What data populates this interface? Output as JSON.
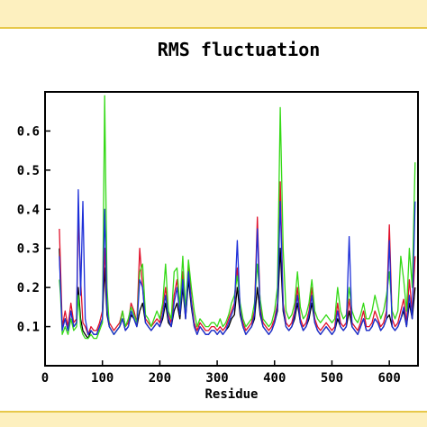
{
  "chart_data": {
    "type": "line",
    "title": "RMS fluctuation",
    "xlabel": "Residue",
    "ylabel": "",
    "xlim": [
      0,
      650
    ],
    "ylim": [
      0,
      0.7
    ],
    "x_ticks": [
      0,
      100,
      200,
      300,
      400,
      500,
      600
    ],
    "x_tick_labels": [
      "0",
      "100",
      "200",
      "300",
      "400",
      "500",
      "600"
    ],
    "y_ticks": [
      0.1,
      0.2,
      0.3,
      0.4,
      0.5,
      0.6
    ],
    "y_tick_labels": [
      "0.1",
      "0.2",
      "0.3",
      "0.4",
      "0.5",
      "0.6"
    ],
    "grid": false,
    "legend": "none",
    "series": [
      {
        "color": "#000000",
        "x": [
          25,
          27,
          30,
          35,
          40,
          45,
          50,
          55,
          58,
          62,
          66,
          70,
          75,
          80,
          85,
          90,
          95,
          100,
          104,
          108,
          112,
          116,
          120,
          125,
          130,
          135,
          140,
          145,
          150,
          155,
          160,
          165,
          170,
          175,
          180,
          185,
          190,
          195,
          200,
          205,
          210,
          215,
          220,
          225,
          230,
          235,
          240,
          245,
          250,
          255,
          260,
          265,
          270,
          275,
          280,
          285,
          290,
          295,
          300,
          305,
          310,
          315,
          320,
          325,
          330,
          335,
          340,
          345,
          350,
          355,
          360,
          365,
          370,
          375,
          380,
          385,
          390,
          395,
          400,
          405,
          410,
          415,
          420,
          425,
          430,
          435,
          440,
          445,
          450,
          455,
          460,
          465,
          470,
          475,
          480,
          485,
          490,
          495,
          500,
          505,
          510,
          515,
          520,
          525,
          530,
          535,
          540,
          545,
          550,
          555,
          560,
          565,
          570,
          575,
          580,
          585,
          590,
          595,
          600,
          605,
          610,
          615,
          620,
          625,
          630,
          635,
          640,
          645
        ],
        "y": [
          0.3,
          0.2,
          0.1,
          0.12,
          0.09,
          0.14,
          0.1,
          0.11,
          0.2,
          0.12,
          0.09,
          0.08,
          0.07,
          0.09,
          0.08,
          0.08,
          0.1,
          0.12,
          0.25,
          0.13,
          0.1,
          0.09,
          0.08,
          0.09,
          0.1,
          0.12,
          0.09,
          0.1,
          0.13,
          0.12,
          0.1,
          0.14,
          0.16,
          0.11,
          0.1,
          0.09,
          0.1,
          0.11,
          0.1,
          0.12,
          0.16,
          0.11,
          0.1,
          0.14,
          0.16,
          0.12,
          0.2,
          0.12,
          0.22,
          0.15,
          0.1,
          0.08,
          0.1,
          0.09,
          0.08,
          0.08,
          0.09,
          0.09,
          0.08,
          0.09,
          0.08,
          0.09,
          0.1,
          0.12,
          0.13,
          0.2,
          0.13,
          0.1,
          0.08,
          0.09,
          0.1,
          0.12,
          0.2,
          0.13,
          0.1,
          0.09,
          0.08,
          0.09,
          0.11,
          0.14,
          0.3,
          0.14,
          0.1,
          0.09,
          0.1,
          0.12,
          0.16,
          0.11,
          0.09,
          0.1,
          0.12,
          0.16,
          0.11,
          0.09,
          0.08,
          0.09,
          0.1,
          0.09,
          0.08,
          0.09,
          0.12,
          0.1,
          0.09,
          0.1,
          0.14,
          0.1,
          0.09,
          0.08,
          0.1,
          0.12,
          0.09,
          0.09,
          0.1,
          0.12,
          0.11,
          0.09,
          0.1,
          0.12,
          0.13,
          0.1,
          0.09,
          0.1,
          0.12,
          0.14,
          0.1,
          0.16,
          0.12,
          0.2
        ]
      },
      {
        "color": "#e0102a",
        "x": [
          25,
          27,
          30,
          35,
          40,
          45,
          50,
          55,
          58,
          62,
          66,
          70,
          75,
          80,
          85,
          90,
          95,
          100,
          104,
          108,
          112,
          116,
          120,
          125,
          130,
          135,
          140,
          145,
          150,
          155,
          160,
          165,
          170,
          175,
          180,
          185,
          190,
          195,
          200,
          205,
          210,
          215,
          220,
          225,
          230,
          235,
          240,
          245,
          250,
          255,
          260,
          265,
          270,
          275,
          280,
          285,
          290,
          295,
          300,
          305,
          310,
          315,
          320,
          325,
          330,
          335,
          340,
          345,
          350,
          355,
          360,
          365,
          370,
          375,
          380,
          385,
          390,
          395,
          400,
          405,
          410,
          415,
          420,
          425,
          430,
          435,
          440,
          445,
          450,
          455,
          460,
          465,
          470,
          475,
          480,
          485,
          490,
          495,
          500,
          505,
          510,
          515,
          520,
          525,
          530,
          535,
          540,
          545,
          550,
          555,
          560,
          565,
          570,
          575,
          580,
          585,
          590,
          595,
          600,
          605,
          610,
          615,
          620,
          625,
          630,
          635,
          640,
          645
        ],
        "y": [
          0.35,
          0.25,
          0.1,
          0.14,
          0.1,
          0.16,
          0.11,
          0.12,
          0.38,
          0.22,
          0.11,
          0.1,
          0.08,
          0.1,
          0.09,
          0.09,
          0.11,
          0.14,
          0.3,
          0.15,
          0.11,
          0.1,
          0.09,
          0.1,
          0.11,
          0.14,
          0.1,
          0.11,
          0.16,
          0.14,
          0.11,
          0.3,
          0.2,
          0.12,
          0.11,
          0.1,
          0.11,
          0.12,
          0.11,
          0.15,
          0.2,
          0.13,
          0.11,
          0.18,
          0.22,
          0.14,
          0.24,
          0.13,
          0.26,
          0.17,
          0.11,
          0.09,
          0.11,
          0.1,
          0.09,
          0.09,
          0.1,
          0.1,
          0.09,
          0.1,
          0.09,
          0.1,
          0.12,
          0.14,
          0.16,
          0.25,
          0.15,
          0.11,
          0.09,
          0.1,
          0.11,
          0.14,
          0.38,
          0.15,
          0.11,
          0.1,
          0.09,
          0.1,
          0.12,
          0.16,
          0.47,
          0.16,
          0.11,
          0.1,
          0.11,
          0.14,
          0.2,
          0.12,
          0.1,
          0.11,
          0.14,
          0.2,
          0.12,
          0.1,
          0.09,
          0.1,
          0.11,
          0.1,
          0.09,
          0.1,
          0.16,
          0.11,
          0.1,
          0.11,
          0.17,
          0.11,
          0.1,
          0.09,
          0.11,
          0.14,
          0.1,
          0.1,
          0.11,
          0.14,
          0.12,
          0.1,
          0.11,
          0.14,
          0.36,
          0.12,
          0.1,
          0.11,
          0.14,
          0.17,
          0.11,
          0.22,
          0.14,
          0.28
        ]
      },
      {
        "color": "#34d916",
        "x": [
          25,
          27,
          30,
          35,
          40,
          45,
          50,
          55,
          58,
          62,
          66,
          70,
          75,
          80,
          85,
          90,
          95,
          100,
          104,
          108,
          112,
          116,
          120,
          125,
          130,
          135,
          140,
          145,
          150,
          155,
          160,
          165,
          170,
          175,
          180,
          185,
          190,
          195,
          200,
          205,
          210,
          215,
          220,
          225,
          230,
          235,
          240,
          245,
          250,
          255,
          260,
          265,
          270,
          275,
          280,
          285,
          290,
          295,
          300,
          305,
          310,
          315,
          320,
          325,
          330,
          335,
          340,
          345,
          350,
          355,
          360,
          365,
          370,
          375,
          380,
          385,
          390,
          395,
          400,
          405,
          410,
          415,
          420,
          425,
          430,
          435,
          440,
          445,
          450,
          455,
          460,
          465,
          470,
          475,
          480,
          485,
          490,
          495,
          500,
          505,
          510,
          515,
          520,
          525,
          530,
          535,
          540,
          545,
          550,
          555,
          560,
          565,
          570,
          575,
          580,
          585,
          590,
          595,
          600,
          605,
          610,
          615,
          620,
          625,
          630,
          635,
          640,
          645
        ],
        "y": [
          0.22,
          0.18,
          0.08,
          0.1,
          0.08,
          0.12,
          0.09,
          0.1,
          0.18,
          0.1,
          0.08,
          0.07,
          0.07,
          0.08,
          0.07,
          0.07,
          0.09,
          0.11,
          0.69,
          0.2,
          0.1,
          0.09,
          0.08,
          0.09,
          0.1,
          0.14,
          0.1,
          0.12,
          0.15,
          0.13,
          0.11,
          0.24,
          0.26,
          0.13,
          0.12,
          0.1,
          0.12,
          0.14,
          0.12,
          0.16,
          0.26,
          0.14,
          0.12,
          0.24,
          0.25,
          0.15,
          0.28,
          0.14,
          0.27,
          0.2,
          0.14,
          0.1,
          0.12,
          0.11,
          0.1,
          0.1,
          0.11,
          0.11,
          0.1,
          0.12,
          0.1,
          0.11,
          0.13,
          0.16,
          0.18,
          0.23,
          0.16,
          0.12,
          0.1,
          0.11,
          0.12,
          0.16,
          0.26,
          0.17,
          0.12,
          0.11,
          0.1,
          0.11,
          0.14,
          0.2,
          0.66,
          0.3,
          0.14,
          0.12,
          0.13,
          0.16,
          0.24,
          0.15,
          0.12,
          0.13,
          0.16,
          0.22,
          0.14,
          0.12,
          0.11,
          0.12,
          0.13,
          0.12,
          0.11,
          0.12,
          0.2,
          0.14,
          0.12,
          0.13,
          0.2,
          0.14,
          0.12,
          0.11,
          0.13,
          0.16,
          0.12,
          0.12,
          0.14,
          0.18,
          0.15,
          0.12,
          0.14,
          0.18,
          0.24,
          0.14,
          0.12,
          0.14,
          0.28,
          0.22,
          0.14,
          0.3,
          0.2,
          0.52
        ]
      },
      {
        "color": "#1c2ed8",
        "x": [
          25,
          27,
          30,
          35,
          40,
          45,
          50,
          55,
          58,
          62,
          66,
          70,
          75,
          80,
          85,
          90,
          95,
          100,
          104,
          108,
          112,
          116,
          120,
          125,
          130,
          135,
          140,
          145,
          150,
          155,
          160,
          165,
          170,
          175,
          180,
          185,
          190,
          195,
          200,
          205,
          210,
          215,
          220,
          225,
          230,
          235,
          240,
          245,
          250,
          255,
          260,
          265,
          270,
          275,
          280,
          285,
          290,
          295,
          300,
          305,
          310,
          315,
          320,
          325,
          330,
          335,
          340,
          345,
          350,
          355,
          360,
          365,
          370,
          375,
          380,
          385,
          390,
          395,
          400,
          405,
          410,
          415,
          420,
          425,
          430,
          435,
          440,
          445,
          450,
          455,
          460,
          465,
          470,
          475,
          480,
          485,
          490,
          495,
          500,
          505,
          510,
          515,
          520,
          525,
          530,
          535,
          540,
          545,
          550,
          555,
          560,
          565,
          570,
          575,
          580,
          585,
          590,
          595,
          600,
          605,
          610,
          615,
          620,
          625,
          630,
          635,
          640,
          645
        ],
        "y": [
          0.28,
          0.2,
          0.09,
          0.12,
          0.09,
          0.14,
          0.1,
          0.11,
          0.45,
          0.18,
          0.42,
          0.12,
          0.08,
          0.09,
          0.08,
          0.08,
          0.1,
          0.12,
          0.4,
          0.14,
          0.1,
          0.09,
          0.08,
          0.09,
          0.1,
          0.12,
          0.09,
          0.1,
          0.14,
          0.12,
          0.1,
          0.22,
          0.2,
          0.11,
          0.1,
          0.09,
          0.1,
          0.11,
          0.1,
          0.13,
          0.18,
          0.12,
          0.1,
          0.16,
          0.2,
          0.13,
          0.22,
          0.12,
          0.24,
          0.16,
          0.1,
          0.08,
          0.1,
          0.09,
          0.08,
          0.08,
          0.09,
          0.09,
          0.08,
          0.09,
          0.08,
          0.09,
          0.11,
          0.13,
          0.15,
          0.32,
          0.14,
          0.1,
          0.08,
          0.09,
          0.1,
          0.13,
          0.35,
          0.14,
          0.1,
          0.09,
          0.08,
          0.09,
          0.11,
          0.15,
          0.42,
          0.15,
          0.1,
          0.09,
          0.1,
          0.13,
          0.18,
          0.11,
          0.09,
          0.1,
          0.13,
          0.18,
          0.11,
          0.09,
          0.08,
          0.09,
          0.1,
          0.09,
          0.08,
          0.09,
          0.14,
          0.1,
          0.09,
          0.1,
          0.33,
          0.1,
          0.09,
          0.08,
          0.1,
          0.12,
          0.09,
          0.09,
          0.1,
          0.12,
          0.11,
          0.09,
          0.1,
          0.12,
          0.32,
          0.1,
          0.09,
          0.1,
          0.12,
          0.15,
          0.1,
          0.18,
          0.12,
          0.42
        ]
      }
    ]
  }
}
